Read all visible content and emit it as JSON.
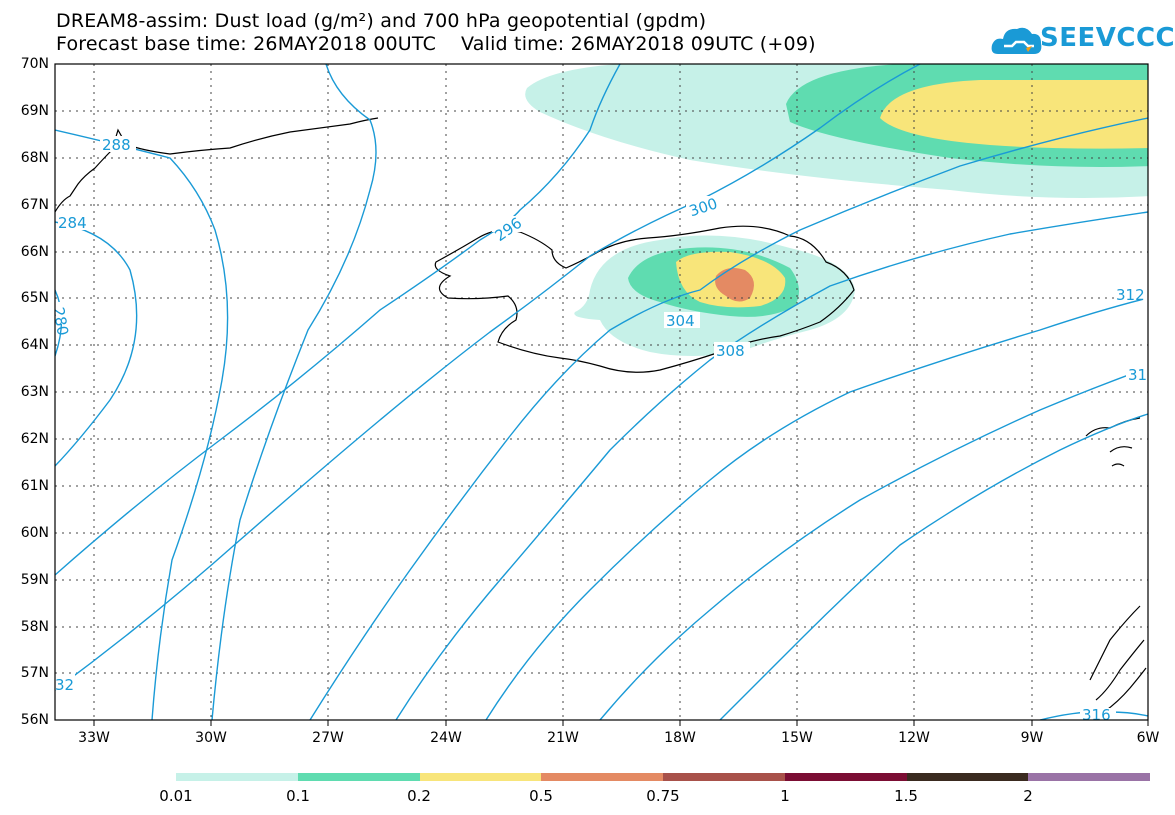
{
  "title_line1": "DREAM8-assim: Dust load (g/m²) and 700 hPa geopotential (gpdm)",
  "title_line2": "Forecast base time: 26MAY2018 00UTC    Valid time: 26MAY2018 09UTC (+09)",
  "logo": {
    "text": "SEEVCCC",
    "icon": "cloud-icon",
    "color": "#1a9ad6"
  },
  "map": {
    "lat_labels": [
      "70N",
      "69N",
      "68N",
      "67N",
      "66N",
      "65N",
      "64N",
      "63N",
      "62N",
      "61N",
      "60N",
      "59N",
      "58N",
      "57N",
      "56N"
    ],
    "lon_labels": [
      "33W",
      "30W",
      "27W",
      "24W",
      "21W",
      "18W",
      "15W",
      "12W",
      "9W",
      "6W"
    ],
    "contour_labels": [
      "288",
      "284",
      "280",
      "296",
      "300",
      "304",
      "308",
      "312",
      "316",
      "31",
      "32"
    ],
    "contour_color": "#1a9ad6"
  },
  "colorbar": {
    "labels": [
      "0.01",
      "0.1",
      "0.2",
      "0.5",
      "0.75",
      "1",
      "1.5",
      "2"
    ],
    "colors": [
      "#c6f1e8",
      "#5fdcb0",
      "#f8e57a",
      "#e48a63",
      "#a8514a",
      "#7b0d33",
      "#3a2a1f",
      "#9a73a6"
    ]
  }
}
